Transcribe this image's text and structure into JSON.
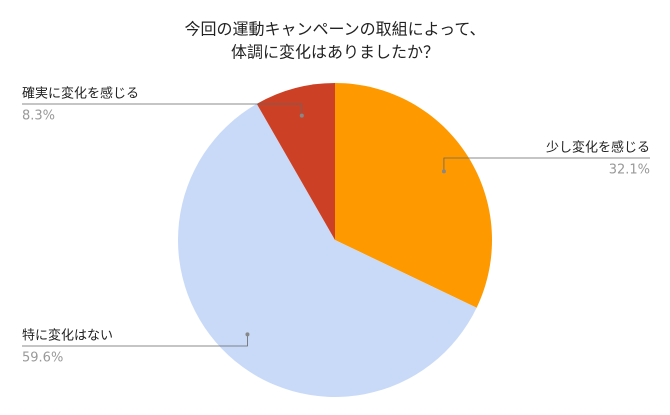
{
  "chart_data": {
    "type": "pie",
    "title": [
      "今回の運動キャンペーンの取組によって、",
      "体調に変化はありましたか？"
    ],
    "categories": [
      "少し変化を感じる",
      "特に変化はない",
      "確実に変化を感じる"
    ],
    "values": [
      32.1,
      59.6,
      8.3
    ],
    "value_labels": [
      "32.1%",
      "59.6%",
      "8.3%"
    ],
    "colors": [
      "#ff9900",
      "#c9daf8",
      "#cc4125"
    ]
  }
}
